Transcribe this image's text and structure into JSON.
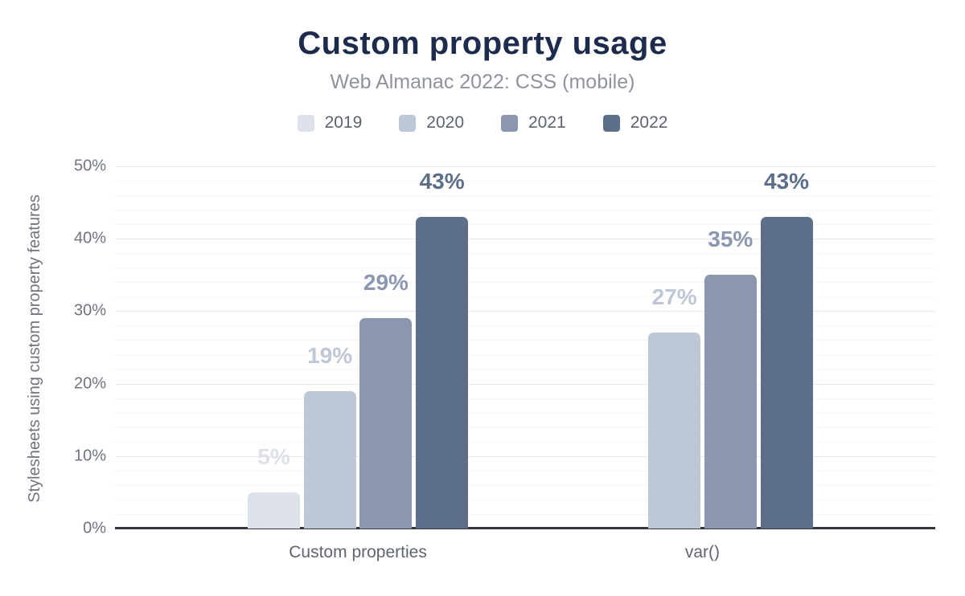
{
  "header": {
    "title": "Custom property usage",
    "subtitle": "Web Almanac 2022: CSS (mobile)"
  },
  "legend": {
    "position": "top",
    "items": [
      {
        "label": "2019",
        "color": "#dce1ea"
      },
      {
        "label": "2020",
        "color": "#bec7d5"
      },
      {
        "label": "2021",
        "color": "#8b97ae"
      },
      {
        "label": "2022",
        "color": "#5d6e88"
      }
    ]
  },
  "axes": {
    "y_title": "Stylesheets using custom property features",
    "y_ticks": [
      "0%",
      "10%",
      "20%",
      "30%",
      "40%",
      "50%"
    ],
    "x_labels": [
      "Custom properties",
      "var()"
    ],
    "baseline_color": "#34373d",
    "major_grid_color": "#e9e9ed",
    "minor_grid_color": "#f6f6f8"
  },
  "chart_data": {
    "type": "bar",
    "title": "Custom property usage",
    "subtitle": "Web Almanac 2022: CSS (mobile)",
    "xlabel": "",
    "ylabel": "Stylesheets using custom property features",
    "categories": [
      "Custom properties",
      "var()"
    ],
    "series": [
      {
        "name": "2019",
        "color": "#dce1ea",
        "values": [
          5,
          null
        ]
      },
      {
        "name": "2020",
        "color": "#bec7d5",
        "values": [
          19,
          27
        ]
      },
      {
        "name": "2021",
        "color": "#8b97ae",
        "values": [
          29,
          35
        ]
      },
      {
        "name": "2022",
        "color": "#5d6e88",
        "values": [
          43,
          43
        ]
      }
    ],
    "bar_value_labels": [
      [
        "5%",
        "19%",
        "29%",
        "43%"
      ],
      [
        null,
        "27%",
        "35%",
        "43%"
      ]
    ],
    "ylim": [
      0,
      50
    ],
    "ytick_interval_major": 10,
    "ytick_interval_minor": 2,
    "grid": "horizontal",
    "legend_position": "top"
  }
}
